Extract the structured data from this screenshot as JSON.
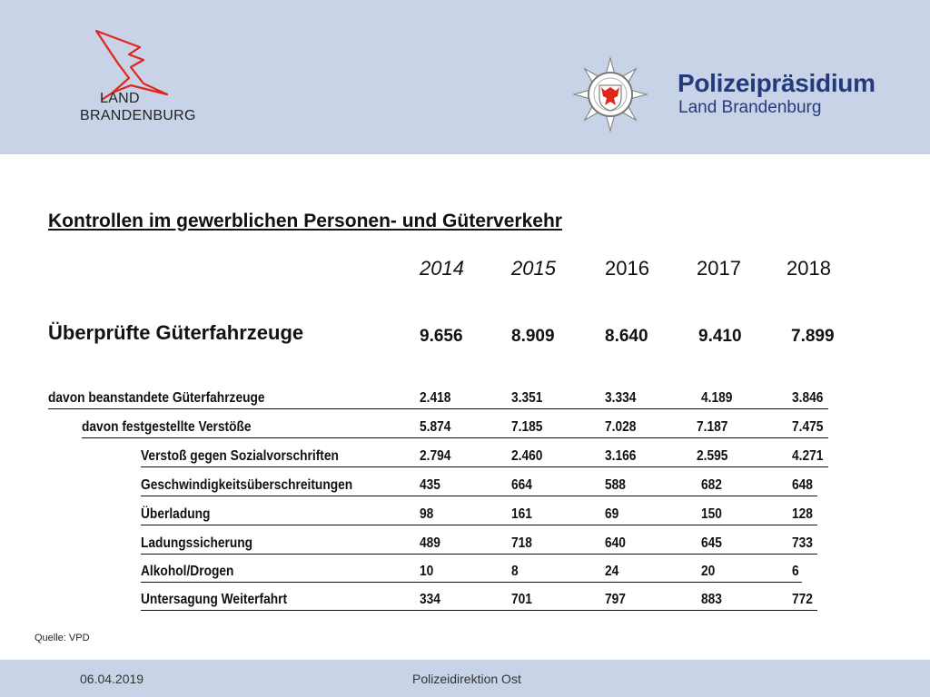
{
  "header": {
    "brand_line1": "LAND",
    "brand_line2": "BRANDENBURG",
    "police_title": "Polizeipräsidium",
    "police_sub": "Land Brandenburg",
    "colors": {
      "band": "#c9d3e8",
      "police_blue": "#243a7a",
      "eagle_red": "#e1251b"
    }
  },
  "content": {
    "title": "Kontrollen im gewerblichen Personen- und Güterverkehr",
    "years": [
      "2014",
      "2015",
      "2016",
      "2017",
      "2018"
    ],
    "main": {
      "label": "Überprüfte Güterfahrzeuge",
      "values": [
        "9.656",
        "8.909",
        "8.640",
        "9.410",
        "7.899"
      ]
    },
    "rows": [
      {
        "label": "davon beanstandete Güterfahrzeuge",
        "values": [
          "2.418",
          "3.351",
          "3.334",
          "4.189",
          "3.846"
        ]
      },
      {
        "label": "davon festgestellte Verstöße",
        "values": [
          "5.874",
          "7.185",
          "7.028",
          "7.187",
          "7.475"
        ]
      },
      {
        "label": "Verstoß gegen Sozialvorschriften",
        "values": [
          "2.794",
          "2.460",
          "3.166",
          "2.595",
          "4.271"
        ]
      },
      {
        "label": "Geschwindigkeitsüberschreitungen",
        "values": [
          "435",
          "664",
          "588",
          "682",
          "648"
        ]
      },
      {
        "label": "Überladung",
        "values": [
          "98",
          "161",
          "69",
          "150",
          "128"
        ]
      },
      {
        "label": "Ladungssicherung",
        "values": [
          "489",
          "718",
          "640",
          "645",
          "733"
        ]
      },
      {
        "label": "Alkohol/Drogen",
        "values": [
          "10",
          "8",
          "24",
          "20",
          "6"
        ]
      },
      {
        "label": "Untersagung Weiterfahrt",
        "values": [
          "334",
          "701",
          "797",
          "883",
          "772"
        ]
      }
    ],
    "source": "Quelle: VPD"
  },
  "footer": {
    "date": "06.04.2019",
    "org": "Polizeidirektion Ost"
  }
}
